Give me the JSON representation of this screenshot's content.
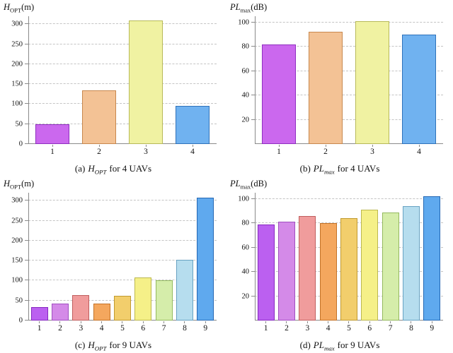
{
  "figure": {
    "background": "#ffffff",
    "gridline_color": "#c4c4c4",
    "axis_color": "#8a8a8a"
  },
  "palettes": {
    "uav4": [
      {
        "fill": "#cb68ee",
        "edge": "#8f2fc0"
      },
      {
        "fill": "#f3c295",
        "edge": "#c8884e"
      },
      {
        "fill": "#f0f2a2",
        "edge": "#b8ba58"
      },
      {
        "fill": "#70b2f0",
        "edge": "#2f72ba"
      }
    ],
    "uav9": [
      {
        "fill": "#bb60f0",
        "edge": "#8628c0"
      },
      {
        "fill": "#d48ae8",
        "edge": "#a04fc0"
      },
      {
        "fill": "#f09c9c",
        "edge": "#c05f5f"
      },
      {
        "fill": "#f4a75e",
        "edge": "#c47328"
      },
      {
        "fill": "#f2ce6c",
        "edge": "#c09a30"
      },
      {
        "fill": "#f5f088",
        "edge": "#bcb84e"
      },
      {
        "fill": "#d5edaa",
        "edge": "#94ba5e"
      },
      {
        "fill": "#b6ddee",
        "edge": "#68a2c2"
      },
      {
        "fill": "#5fa9ee",
        "edge": "#2568b4"
      }
    ]
  },
  "chart_data": [
    {
      "type": "bar",
      "panel": "a",
      "ylabel": "H_OPT(m)",
      "ylabel_parts": {
        "sym": "H",
        "sub": "OPT",
        "unit": "(m)"
      },
      "caption": "(a) H_OPT for 4 UAVs",
      "caption_parts": {
        "index": "(a)",
        "sym": "H",
        "sub": "OPT",
        "rest": "for 4 UAVs"
      },
      "categories": [
        "1",
        "2",
        "3",
        "4"
      ],
      "values": [
        50,
        135,
        310,
        95
      ],
      "ylim": [
        0,
        320
      ],
      "yticks": [
        0,
        50,
        100,
        150,
        200,
        250,
        300
      ],
      "grid": "dashed-horizontal",
      "legend": "none",
      "palette": "uav4",
      "bar_width": "72%"
    },
    {
      "type": "bar",
      "panel": "b",
      "ylabel": "PL_max(dB)",
      "ylabel_parts": {
        "sym": "PL",
        "sub": "max",
        "unit": "(dB)"
      },
      "caption": "(b) PL_max for 4 UAVs",
      "caption_parts": {
        "index": "(b)",
        "sym": "PL",
        "sub": "max",
        "rest": "for 4 UAVs"
      },
      "categories": [
        "1",
        "2",
        "3",
        "4"
      ],
      "values": [
        82,
        92,
        101,
        90
      ],
      "ylim": [
        0,
        105
      ],
      "yticks": [
        20,
        40,
        60,
        80,
        100
      ],
      "grid": "dashed-horizontal",
      "legend": "none",
      "palette": "uav4",
      "bar_width": "72%"
    },
    {
      "type": "bar",
      "panel": "c",
      "ylabel": "H_OPT(m)",
      "ylabel_parts": {
        "sym": "H",
        "sub": "OPT",
        "unit": "(m)"
      },
      "caption": "(c) H_OPT for 9 UAVs",
      "caption_parts": {
        "index": "(c)",
        "sym": "H",
        "sub": "OPT",
        "rest": "for 9 UAVs"
      },
      "categories": [
        "1",
        "2",
        "3",
        "4",
        "5",
        "6",
        "7",
        "8",
        "9"
      ],
      "values": [
        33,
        43,
        63,
        42,
        62,
        107,
        100,
        152,
        307
      ],
      "ylim": [
        0,
        320
      ],
      "yticks": [
        0,
        50,
        100,
        150,
        200,
        250,
        300
      ],
      "grid": "dashed-horizontal",
      "legend": "none",
      "palette": "uav9",
      "bar_width": "82%"
    },
    {
      "type": "bar",
      "panel": "d",
      "ylabel": "PL_max(dB)",
      "ylabel_parts": {
        "sym": "PL",
        "sub": "max",
        "unit": "(dB)"
      },
      "caption": "(d) PL_max for 9 UAVs",
      "caption_parts": {
        "index": "(d)",
        "sym": "PL",
        "sub": "max",
        "rest": "for 9 UAVs"
      },
      "categories": [
        "1",
        "2",
        "3",
        "4",
        "5",
        "6",
        "7",
        "8",
        "9"
      ],
      "values": [
        79,
        81,
        86,
        80,
        84,
        91,
        89,
        94,
        102
      ],
      "ylim": [
        0,
        105
      ],
      "yticks": [
        20,
        40,
        60,
        80,
        100
      ],
      "grid": "dashed-horizontal",
      "legend": "none",
      "palette": "uav9",
      "bar_width": "82%"
    }
  ]
}
